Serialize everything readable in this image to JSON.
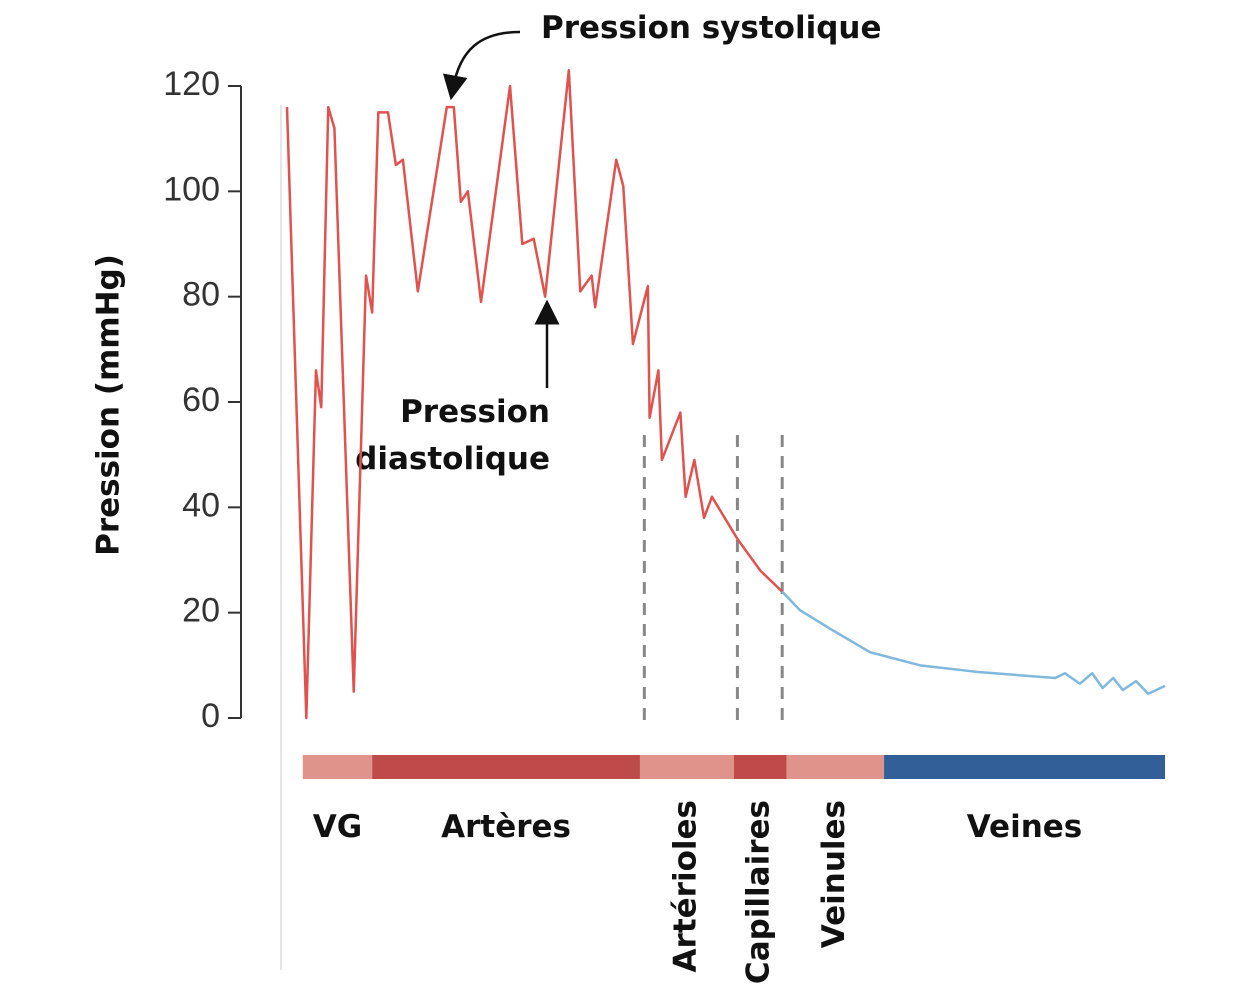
{
  "chart_data": {
    "type": "line",
    "ylabel": "Pression (mmHg)",
    "ylim": [
      0,
      120
    ],
    "yticks": [
      0,
      20,
      40,
      60,
      80,
      100,
      120
    ],
    "xlim": [
      0,
      100
    ],
    "series": [
      {
        "color": "#e0524e",
        "x": [
          0,
          2.2,
          3.3,
          3.9,
          4.7,
          5.4,
          7.6,
          9.0,
          9.7,
          10.4,
          11.5,
          12.4,
          13.2,
          14.9,
          18.2,
          19.0,
          19.8,
          20.6,
          22.1,
          25.4,
          26.8,
          28.1,
          29.4,
          32.1,
          33.4,
          34.7,
          35.1,
          37.5,
          38.3,
          39.4,
          41.1,
          41.3,
          42.3,
          42.7,
          44.8,
          45.4,
          46.4,
          47.5,
          48.4,
          51.3,
          53.9,
          56.4
        ],
        "values": [
          116,
          0,
          66,
          59,
          116,
          112,
          5,
          84,
          77,
          115,
          115,
          105,
          106,
          81,
          116,
          116,
          98,
          100,
          79,
          120,
          90,
          91,
          80,
          123,
          81,
          84,
          78,
          106,
          101,
          71,
          82,
          57,
          66,
          49,
          58,
          42,
          49,
          38,
          42,
          34,
          28,
          24
        ]
      },
      {
        "color": "#7fb8dc",
        "x": [
          56.4,
          58.4,
          61.8,
          66.4,
          72.1,
          78.9,
          87.5,
          88.6,
          90.3,
          91.7,
          92.9,
          94.1,
          95.2,
          96.7,
          98.1,
          100
        ],
        "values": [
          24,
          20.5,
          17,
          12.5,
          10,
          8.7,
          7.6,
          8.5,
          6.5,
          8.5,
          5.7,
          7.6,
          5.3,
          7,
          4.6,
          6.1
        ]
      }
    ],
    "dividers": [
      40.7,
      51.3,
      56.4
    ],
    "regions": [
      {
        "name": "VG",
        "start": 1.8,
        "end": 9.7,
        "color": "#e0938a",
        "rotated": false
      },
      {
        "name": "Artères",
        "start": 9.7,
        "end": 40.2,
        "color": "#bf4a4a",
        "rotated": false
      },
      {
        "name": "Artérioles",
        "start": 40.2,
        "end": 50.9,
        "color": "#e0938a",
        "rotated": true
      },
      {
        "name": "Capillaires",
        "start": 50.9,
        "end": 56.9,
        "color": "#bf4a4a",
        "rotated": true
      },
      {
        "name": "Veinules",
        "start": 56.9,
        "end": 68.0,
        "color": "#e0938a",
        "rotated": true
      },
      {
        "name": "Veines",
        "start": 68.0,
        "end": 100,
        "color": "#335f99",
        "rotated": false
      }
    ],
    "annotations": [
      {
        "lines": [
          "Pression systolique"
        ]
      },
      {
        "lines": [
          "Pression",
          "diastolique"
        ]
      }
    ]
  }
}
